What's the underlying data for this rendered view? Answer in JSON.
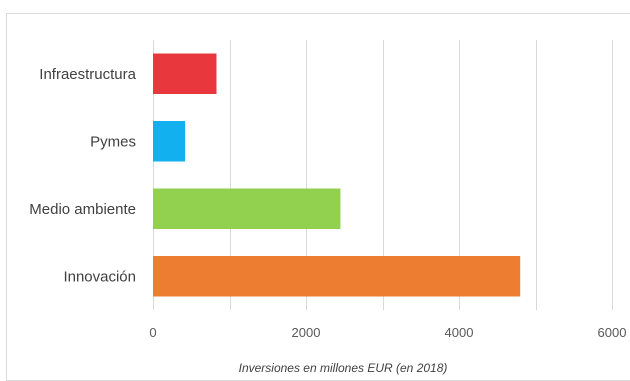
{
  "chart_data": {
    "type": "bar",
    "orientation": "horizontal",
    "title": "",
    "xlabel": "Inversiones en millones EUR (en 2018)",
    "ylabel": "",
    "xlim": [
      0,
      6000
    ],
    "xticks": [
      0,
      2000,
      4000,
      6000
    ],
    "xtick_labels": [
      "0",
      "2000",
      "4000",
      "6000"
    ],
    "grid": true,
    "categories": [
      "Infraestructura",
      "Pymes",
      "Medio ambiente",
      "Innovación"
    ],
    "values": [
      830,
      420,
      2450,
      4800
    ],
    "colors": [
      "#e8383d",
      "#13b0ef",
      "#92d050",
      "#ed7d31"
    ]
  }
}
